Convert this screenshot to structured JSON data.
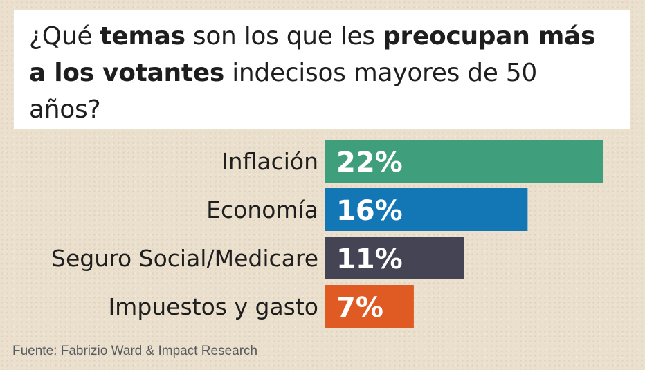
{
  "title_parts": [
    {
      "text": "¿Qué ",
      "bold": false
    },
    {
      "text": "temas",
      "bold": true
    },
    {
      "text": " son los que les ",
      "bold": false
    },
    {
      "text": "preocupan",
      "bold": true
    },
    {
      "text": " más a los votantes",
      "bold": true
    },
    {
      "text": " indecisos mayores de 50 años?",
      "bold": false
    }
  ],
  "source": "Fuente: Fabrizio Ward & Impact Research",
  "chart_data": {
    "type": "bar",
    "orientation": "horizontal",
    "title": "¿Qué temas son los que les preocupan más a los votantes indecisos mayores de 50 años?",
    "categories": [
      "Inflación",
      "Economía",
      "Seguro Social/Medicare",
      "Impuestos y gasto"
    ],
    "values": [
      22,
      16,
      11,
      7
    ],
    "value_labels": [
      "22%",
      "16%",
      "11%",
      "7%"
    ],
    "colors": [
      "#3f9f7c",
      "#1377b6",
      "#454455",
      "#e05a24"
    ],
    "xlim": [
      0,
      22
    ],
    "grid": false,
    "legend": "none"
  }
}
